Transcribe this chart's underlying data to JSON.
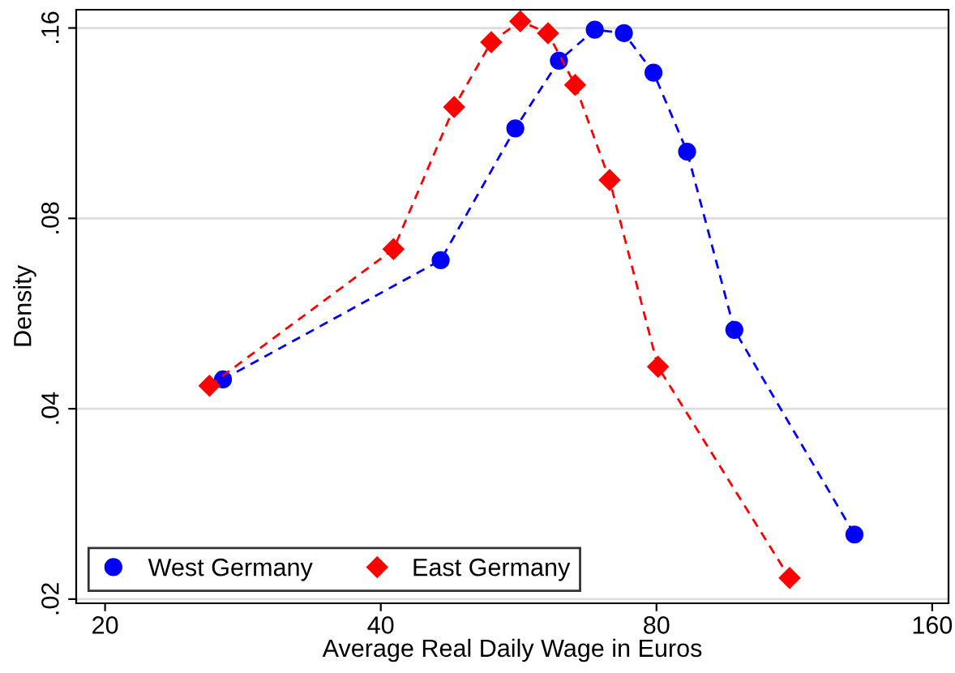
{
  "chart_data": {
    "type": "line",
    "xlabel": "Average Real Daily Wage in Euros",
    "ylabel": "Density",
    "log": "xy",
    "grid": "y",
    "legend": "bottom left",
    "line_style": "dashed",
    "xlim": [
      18.6,
      166.7
    ],
    "xticks": [
      20,
      40,
      80,
      160
    ],
    "ylim": [
      0.0197,
      0.171
    ],
    "yticks": [
      {
        "value": 0.02,
        "label": ".02"
      },
      {
        "value": 0.04,
        "label": ".04"
      },
      {
        "value": 0.08,
        "label": ".08"
      },
      {
        "value": 0.16,
        "label": ".16"
      }
    ],
    "series": [
      {
        "name": "West Germany",
        "color": "#0000ff",
        "marker": "circle",
        "x": [
          26.9,
          46.5,
          56.1,
          62.6,
          68.5,
          73.7,
          79.4,
          86.4,
          97.3,
          131.6
        ],
        "values": [
          0.0445,
          0.0687,
          0.111,
          0.142,
          0.159,
          0.157,
          0.136,
          0.102,
          0.0533,
          0.0253
        ]
      },
      {
        "name": "East Germany",
        "color": "#ff0000",
        "marker": "diamond",
        "x": [
          26.0,
          41.3,
          48.1,
          52.8,
          56.8,
          60.9,
          65.2,
          71.1,
          80.3,
          111.8
        ],
        "values": [
          0.0435,
          0.0715,
          0.12,
          0.152,
          0.164,
          0.157,
          0.13,
          0.092,
          0.0466,
          0.0216
        ]
      }
    ]
  }
}
